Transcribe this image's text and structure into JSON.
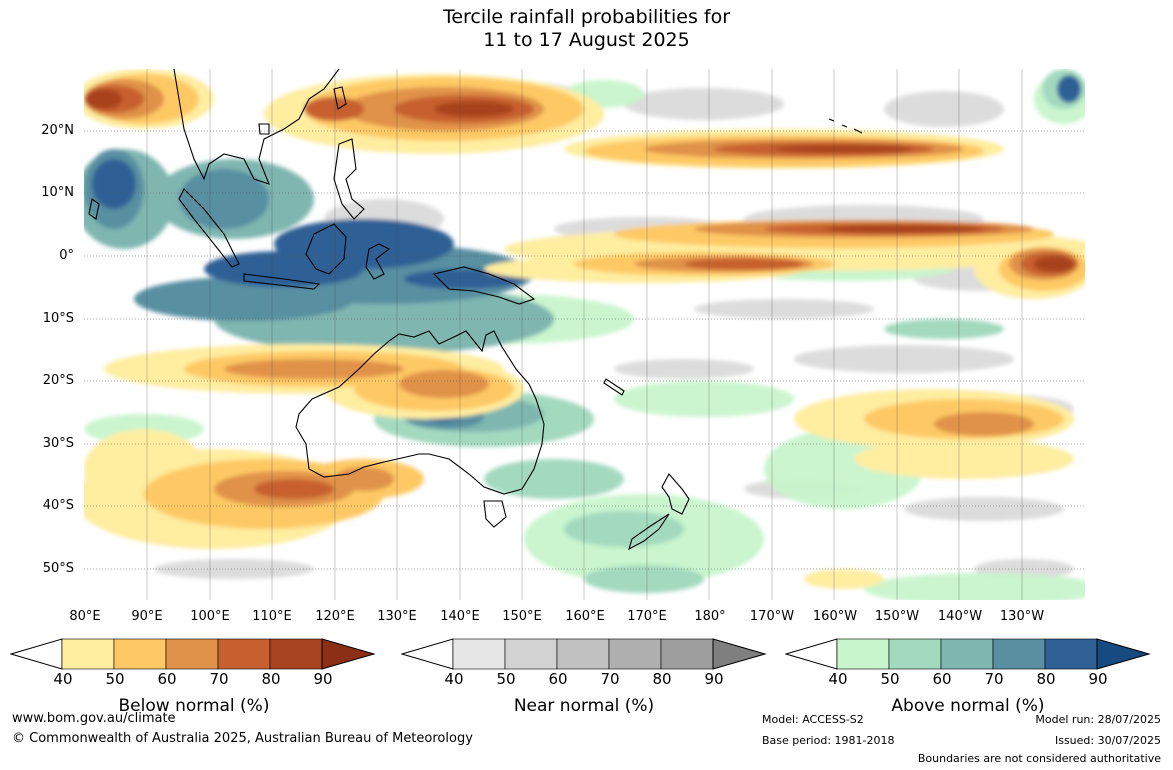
{
  "title": {
    "line1": "Tercile rainfall probabilities for",
    "line2": "11 to 17 August 2025"
  },
  "lat_labels": [
    "20°N",
    "10°N",
    "0°",
    "10°S",
    "20°S",
    "30°S",
    "40°S",
    "50°S"
  ],
  "lon_labels": [
    "80°E",
    "90°E",
    "100°E",
    "110°E",
    "120°E",
    "130°E",
    "140°E",
    "150°E",
    "160°E",
    "170°E",
    "180°",
    "170°W",
    "160°W",
    "150°W",
    "140°W",
    "130°W"
  ],
  "colorbars": [
    {
      "title": "Below normal (%)",
      "ticks": [
        "40",
        "50",
        "60",
        "70",
        "80",
        "90"
      ],
      "colors": [
        "#ffffff",
        "#ffeda0",
        "#fec965",
        "#e0924a",
        "#c7602f",
        "#a8431f",
        "#8b3015"
      ]
    },
    {
      "title": "Near normal (%)",
      "ticks": [
        "40",
        "50",
        "60",
        "70",
        "80",
        "90"
      ],
      "colors": [
        "#ffffff",
        "#e6e6e6",
        "#d2d2d2",
        "#c0c0c0",
        "#afafaf",
        "#9e9e9e",
        "#7f7f7f"
      ]
    },
    {
      "title": "Above normal (%)",
      "ticks": [
        "40",
        "50",
        "60",
        "70",
        "80",
        "90"
      ],
      "colors": [
        "#ffffff",
        "#c8f5cc",
        "#a3d9bf",
        "#7fb6b0",
        "#598fa1",
        "#2f6196",
        "#174a80"
      ]
    }
  ],
  "footer": {
    "url": "www.bom.gov.au/climate",
    "copyright": "© Commonwealth of Australia 2025, Australian Bureau of Meteorology",
    "model": "Model: ACCESS-S2",
    "base_period": "Base period: 1981-2018",
    "model_run": "Model run: 28/07/2025",
    "issued": "Issued: 30/07/2025",
    "disclaimer": "Boundaries are not considered authoritative"
  }
}
